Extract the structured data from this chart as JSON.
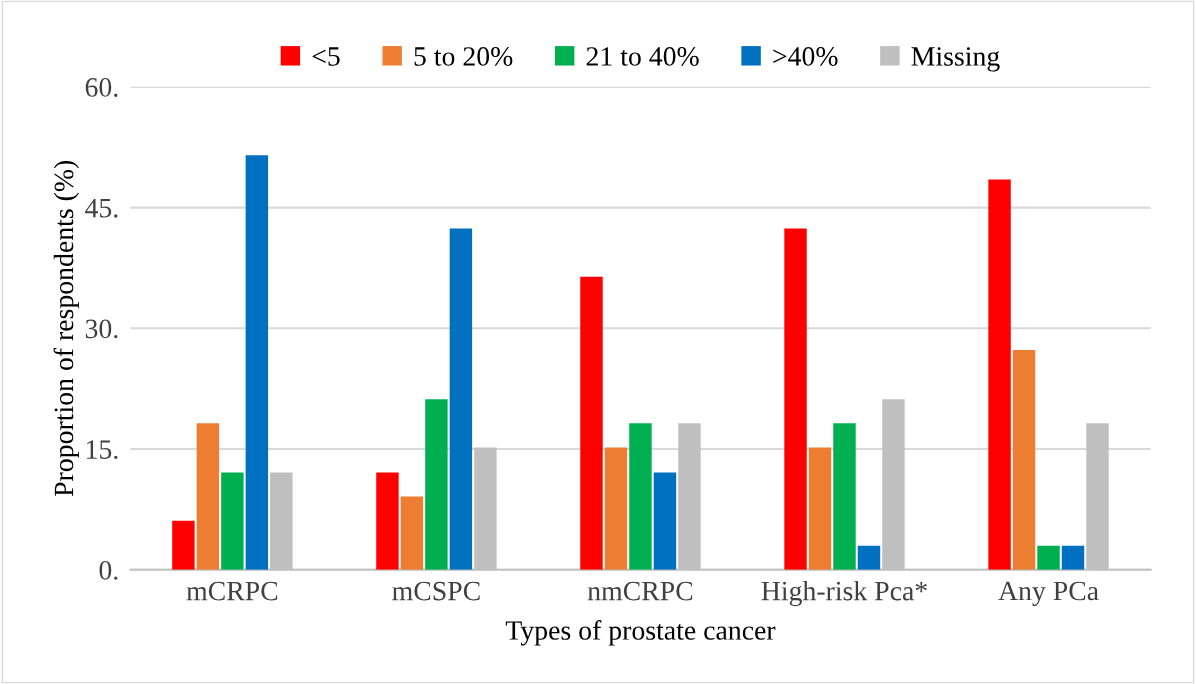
{
  "chart_data": {
    "type": "bar",
    "xlabel": "Types of prostate cancer",
    "ylabel": "Proportion of respondents (%)",
    "categories": [
      "mCRPC",
      "mCSPC",
      "nmCRPC",
      "High-risk Pca*",
      "Any PCa"
    ],
    "series": [
      {
        "name": "<5",
        "color": "#ff0000",
        "values": [
          6.1,
          12.1,
          36.4,
          42.4,
          48.5
        ]
      },
      {
        "name": "5 to 20%",
        "color": "#ed7d31",
        "values": [
          18.2,
          9.1,
          15.2,
          15.2,
          27.3
        ]
      },
      {
        "name": "21 to 40%",
        "color": "#00b050",
        "values": [
          12.1,
          21.2,
          18.2,
          18.2,
          3.0
        ]
      },
      {
        "name": ">40%",
        "color": "#0070c0",
        "values": [
          51.5,
          42.4,
          12.1,
          3.0,
          3.0
        ]
      },
      {
        "name": "Missing",
        "color": "#bfbfbf",
        "values": [
          12.1,
          15.2,
          18.2,
          21.2,
          18.2
        ]
      }
    ],
    "ylim": [
      0,
      60
    ],
    "yticks": [
      {
        "value": 0,
        "label": "0."
      },
      {
        "value": 15,
        "label": "15."
      },
      {
        "value": 30,
        "label": "30."
      },
      {
        "value": 45,
        "label": "45."
      },
      {
        "value": 60,
        "label": "60."
      }
    ],
    "grid": "y",
    "legend": "top"
  }
}
